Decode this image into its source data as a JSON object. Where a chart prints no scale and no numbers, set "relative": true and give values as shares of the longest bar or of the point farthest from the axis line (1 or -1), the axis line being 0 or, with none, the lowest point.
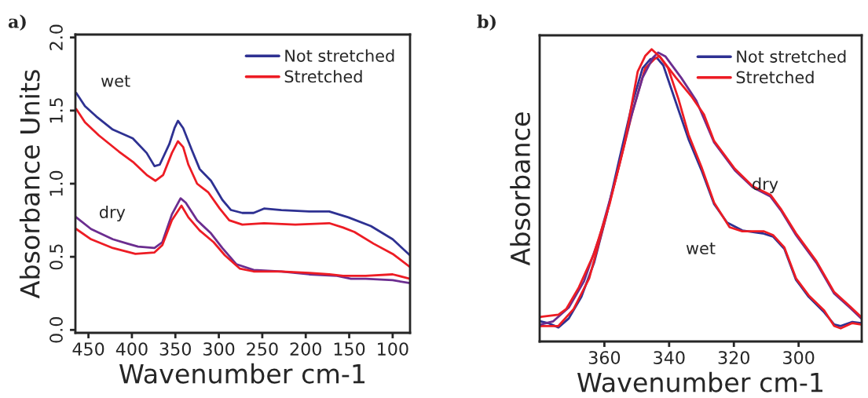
{
  "chart_data": [
    {
      "type": "line",
      "xlabel": "Wavenumber cm-1",
      "ylabel": "Absorbance Units",
      "xlim": [
        465,
        80
      ],
      "ylim": [
        -0.02,
        2.02
      ],
      "xticks": [
        450,
        400,
        350,
        300,
        250,
        200,
        150,
        100
      ],
      "yticks": [
        {
          "value": 0,
          "label": "0.0"
        },
        0.5,
        {
          "value": 1,
          "label": "1.0"
        },
        1.5,
        {
          "value": 2,
          "label": "2.0"
        }
      ],
      "grid": false,
      "legend": "top right",
      "annotations": [
        "a)",
        "wet",
        "dry"
      ],
      "series": [
        {
          "name": "Not stretched",
          "color": "#2e3192",
          "x": [
            464,
            454,
            441,
            422,
            399,
            383,
            374,
            368,
            357,
            351,
            347,
            341,
            331,
            322,
            309,
            296,
            286,
            273,
            260,
            248,
            228,
            196,
            173,
            151,
            125,
            100,
            80
          ],
          "values": [
            1.62,
            1.53,
            1.46,
            1.37,
            1.31,
            1.21,
            1.12,
            1.13,
            1.27,
            1.38,
            1.43,
            1.38,
            1.23,
            1.1,
            1.02,
            0.89,
            0.82,
            0.8,
            0.8,
            0.83,
            0.82,
            0.81,
            0.81,
            0.77,
            0.71,
            0.62,
            0.51
          ]
        },
        {
          "name": "Stretched",
          "color": "#ed1c24",
          "x": [
            464,
            454,
            438,
            415,
            399,
            383,
            373,
            364,
            354,
            347,
            341,
            335,
            325,
            312,
            299,
            288,
            273,
            248,
            212,
            173,
            157,
            144,
            122,
            100,
            80
          ],
          "values": [
            1.51,
            1.42,
            1.33,
            1.22,
            1.15,
            1.06,
            1.02,
            1.06,
            1.21,
            1.29,
            1.25,
            1.13,
            1.0,
            0.94,
            0.83,
            0.75,
            0.72,
            0.73,
            0.72,
            0.73,
            0.7,
            0.67,
            0.59,
            0.52,
            0.43
          ]
        },
        {
          "color": "#6b2d8f",
          "x": [
            464,
            447,
            422,
            405,
            393,
            374,
            365,
            354,
            344,
            338,
            325,
            309,
            296,
            280,
            260,
            228,
            196,
            164,
            148,
            131,
            100,
            80
          ],
          "values": [
            0.77,
            0.69,
            0.62,
            0.59,
            0.57,
            0.56,
            0.6,
            0.79,
            0.9,
            0.87,
            0.75,
            0.66,
            0.56,
            0.45,
            0.41,
            0.4,
            0.38,
            0.37,
            0.35,
            0.35,
            0.34,
            0.32
          ]
        },
        {
          "color": "#ed1c24",
          "x": [
            464,
            447,
            422,
            396,
            374,
            365,
            354,
            343,
            335,
            322,
            306,
            293,
            276,
            260,
            228,
            196,
            173,
            157,
            131,
            100,
            80
          ],
          "values": [
            0.69,
            0.62,
            0.56,
            0.52,
            0.53,
            0.58,
            0.75,
            0.85,
            0.77,
            0.68,
            0.6,
            0.51,
            0.42,
            0.4,
            0.4,
            0.39,
            0.38,
            0.37,
            0.37,
            0.38,
            0.35
          ]
        }
      ]
    },
    {
      "type": "line",
      "relative": true,
      "xlabel": "Wavenumber cm-1",
      "ylabel": "Absorbance",
      "xlim": [
        380,
        280.5
      ],
      "xticks": [
        360,
        340,
        320,
        300
      ],
      "grid": false,
      "legend": "top right",
      "annotations": [
        "b)",
        "dry",
        "wet"
      ],
      "series": [
        {
          "name": "Not stretched",
          "color": "#2e3192",
          "x": [
            379.7,
            377.4,
            374.2,
            371.0,
            367.1,
            363.2,
            359.2,
            355.3,
            351.3,
            348.2,
            345.8,
            343.8,
            341.8,
            337.9,
            334.0,
            330.0,
            326.1,
            322.1,
            317.4,
            311.1,
            307.9,
            304.4,
            300.8,
            296.9,
            292.1,
            289.0,
            287.0,
            283.4,
            280.7
          ],
          "values": [
            0.069,
            0.063,
            0.048,
            0.079,
            0.153,
            0.269,
            0.438,
            0.628,
            0.818,
            0.935,
            0.966,
            0.971,
            0.945,
            0.818,
            0.692,
            0.586,
            0.47,
            0.407,
            0.38,
            0.37,
            0.359,
            0.317,
            0.211,
            0.153,
            0.1,
            0.058,
            0.053,
            0.067,
            0.063
          ]
        },
        {
          "name": "Stretched",
          "color": "#ed1c24",
          "x": [
            379.7,
            374.2,
            369.5,
            364.7,
            360.0,
            355.3,
            351.3,
            347.4,
            344.6,
            343.0,
            340.3,
            337.1,
            334.0,
            330.0,
            326.1,
            321.3,
            317.4,
            310.7,
            307.9,
            304.4,
            300.8,
            296.9,
            292.1,
            289.0,
            287.0,
            283.4,
            280.7
          ],
          "values": [
            0.053,
            0.053,
            0.111,
            0.216,
            0.407,
            0.607,
            0.787,
            0.935,
            0.966,
            0.977,
            0.935,
            0.829,
            0.708,
            0.597,
            0.475,
            0.391,
            0.377,
            0.377,
            0.364,
            0.322,
            0.216,
            0.158,
            0.106,
            0.053,
            0.045,
            0.063,
            0.058
          ]
        },
        {
          "color": "#6b2d8f",
          "x": [
            379.7,
            375.8,
            371.0,
            366.3,
            361.6,
            356.8,
            352.1,
            348.2,
            345.0,
            343.4,
            341.1,
            336.3,
            331.6,
            326.1,
            319.7,
            314.2,
            308.7,
            305.5,
            300.8,
            294.5,
            289.0,
            284.2,
            280.7
          ],
          "values": [
            0.058,
            0.069,
            0.116,
            0.206,
            0.354,
            0.544,
            0.755,
            0.903,
            0.971,
            0.989,
            0.975,
            0.903,
            0.824,
            0.681,
            0.586,
            0.528,
            0.496,
            0.449,
            0.364,
            0.269,
            0.164,
            0.116,
            0.079
          ]
        },
        {
          "color": "#ed1c24",
          "x": [
            379.7,
            374.2,
            371.8,
            367.9,
            363.2,
            358.4,
            353.7,
            349.7,
            347.4,
            345.4,
            342.6,
            337.9,
            333.2,
            329.2,
            326.1,
            319.7,
            314.2,
            308.7,
            305.5,
            300.8,
            294.5,
            289.0,
            284.2,
            280.7
          ],
          "values": [
            0.084,
            0.092,
            0.111,
            0.185,
            0.301,
            0.47,
            0.681,
            0.924,
            0.977,
            1.0,
            0.971,
            0.903,
            0.84,
            0.776,
            0.686,
            0.591,
            0.531,
            0.502,
            0.454,
            0.37,
            0.275,
            0.169,
            0.121,
            0.084
          ]
        }
      ]
    }
  ]
}
